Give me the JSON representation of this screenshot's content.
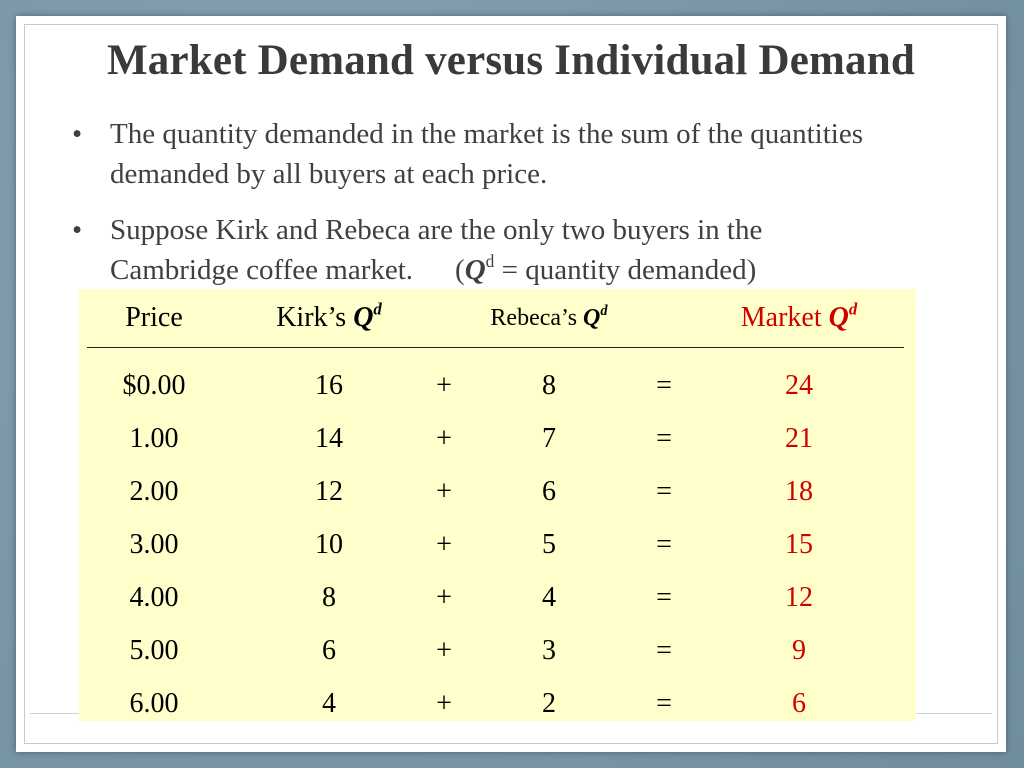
{
  "title": "Market Demand versus Individual Demand",
  "bullets": [
    {
      "text": "The quantity demanded in the market is the sum of the quantities demanded by all buyers at each price."
    },
    {
      "text_a": "Suppose Kirk and Rebeca are the only two buyers in the",
      "text_b": "Cambridge coffee market.",
      "paren_open": "(",
      "q": "Q",
      "sup": "d",
      "paren_rest": " = quantity demanded)"
    }
  ],
  "table": {
    "headers": {
      "price": "Price",
      "kirk": "Kirk’s ",
      "rebeca": "Rebeca’s ",
      "market": "Market ",
      "q": "Q",
      "sup": "d"
    },
    "plus": "+",
    "equals": "=",
    "rows": [
      {
        "price": "$0.00",
        "kirk": "16",
        "rebeca": "8",
        "market": "24"
      },
      {
        "price": "1.00",
        "kirk": "14",
        "rebeca": "7",
        "market": "21"
      },
      {
        "price": "2.00",
        "kirk": "12",
        "rebeca": "6",
        "market": "18"
      },
      {
        "price": "3.00",
        "kirk": "10",
        "rebeca": "5",
        "market": "15"
      },
      {
        "price": "4.00",
        "kirk": "8",
        "rebeca": "4",
        "market": "12"
      },
      {
        "price": "5.00",
        "kirk": "6",
        "rebeca": "3",
        "market": "9"
      },
      {
        "price": "6.00",
        "kirk": "4",
        "rebeca": "2",
        "market": "6"
      }
    ]
  },
  "colors": {
    "market_red": "#d00000",
    "table_bg": "#ffffcc",
    "frame": "#7b98a8"
  }
}
